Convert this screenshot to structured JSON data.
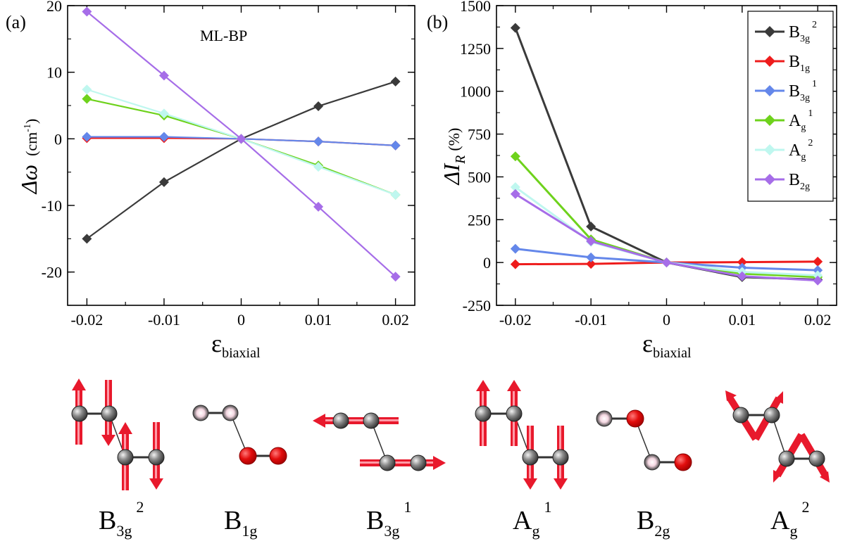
{
  "chart_data": [
    {
      "type": "line",
      "panel": "(a)",
      "annotation": "ML-BP",
      "xlabel_main": "ε",
      "xlabel_sub": "biaxial",
      "ylabel_main": "Δω",
      "ylabel_unit_open": "(cm",
      "ylabel_unit_sup": "-1",
      "ylabel_unit_close": ")",
      "x": [
        -0.02,
        -0.01,
        0,
        0.01,
        0.02
      ],
      "xticks": [
        "-0.02",
        "-0.01",
        "0",
        "0.01",
        "0.02"
      ],
      "yticks": [
        "20",
        "10",
        "0",
        "-10",
        "-20"
      ],
      "xlim": [
        -0.0225,
        0.0225
      ],
      "ylim": [
        -25,
        20
      ],
      "series": [
        {
          "name": "B3g2",
          "color": "#3a3a3a",
          "values": [
            -15.0,
            -6.5,
            0,
            4.9,
            8.6
          ]
        },
        {
          "name": "B1g",
          "color": "#ee1c1c",
          "values": [
            0.1,
            0.1,
            0,
            -0.4,
            -1.0
          ]
        },
        {
          "name": "B3g1",
          "color": "#6487ea",
          "values": [
            0.3,
            0.3,
            0,
            -0.4,
            -1.0
          ]
        },
        {
          "name": "Ag1",
          "color": "#6ed21c",
          "values": [
            6.0,
            3.5,
            0,
            -4.0,
            -8.4
          ]
        },
        {
          "name": "Ag2",
          "color": "#bff7ef",
          "values": [
            7.4,
            3.8,
            0,
            -4.2,
            -8.4
          ]
        },
        {
          "name": "B2g",
          "color": "#a66de8",
          "values": [
            19.1,
            9.5,
            0,
            -10.2,
            -20.7
          ]
        }
      ]
    },
    {
      "type": "line",
      "panel": "(b)",
      "xlabel_main": "ε",
      "xlabel_sub": "biaxial",
      "ylabel_main": "ΔI",
      "ylabel_sub": "R",
      "ylabel_unit": "(%)",
      "x": [
        -0.02,
        -0.01,
        0,
        0.01,
        0.02
      ],
      "xticks": [
        "-0.02",
        "-0.01",
        "0",
        "0.01",
        "0.02"
      ],
      "yticks": [
        "1500",
        "1250",
        "1000",
        "750",
        "500",
        "250",
        "0",
        "-250"
      ],
      "xlim": [
        -0.0225,
        0.0225
      ],
      "ylim": [
        -250,
        1500
      ],
      "legend_position": "top-right",
      "series": [
        {
          "name": "B3g2",
          "color": "#3a3a3a",
          "values": [
            1370,
            210,
            0,
            -85,
            -100
          ]
        },
        {
          "name": "B1g",
          "color": "#ee1c1c",
          "values": [
            -10,
            -8,
            0,
            2,
            5
          ]
        },
        {
          "name": "B3g1",
          "color": "#6487ea",
          "values": [
            80,
            30,
            0,
            -30,
            -45
          ]
        },
        {
          "name": "Ag1",
          "color": "#6ed21c",
          "values": [
            620,
            135,
            0,
            -65,
            -85
          ]
        },
        {
          "name": "Ag2",
          "color": "#bff7ef",
          "values": [
            440,
            120,
            0,
            -55,
            -75
          ]
        },
        {
          "name": "B2g",
          "color": "#a66de8",
          "values": [
            400,
            125,
            0,
            -80,
            -105
          ]
        }
      ],
      "legend": [
        {
          "base": "B",
          "sub": "3g",
          "sup": "2"
        },
        {
          "base": "B",
          "sub": "1g",
          "sup": ""
        },
        {
          "base": "B",
          "sub": "3g",
          "sup": "1"
        },
        {
          "base": "A",
          "sub": "g",
          "sup": "1"
        },
        {
          "base": "A",
          "sub": "g",
          "sup": "2"
        },
        {
          "base": "B",
          "sub": "2g",
          "sup": ""
        }
      ]
    }
  ],
  "modes": [
    {
      "base": "B",
      "sub": "3g",
      "sup": "2"
    },
    {
      "base": "B",
      "sub": "1g",
      "sup": ""
    },
    {
      "base": "B",
      "sub": "3g",
      "sup": "1"
    },
    {
      "base": "A",
      "sub": "g",
      "sup": "1"
    },
    {
      "base": "B",
      "sub": "2g",
      "sup": ""
    },
    {
      "base": "A",
      "sub": "g",
      "sup": "2"
    }
  ],
  "colors": {
    "arrow": "#e8192c",
    "atom": "#6b6b6b",
    "red_atom": "#e20d0d"
  }
}
